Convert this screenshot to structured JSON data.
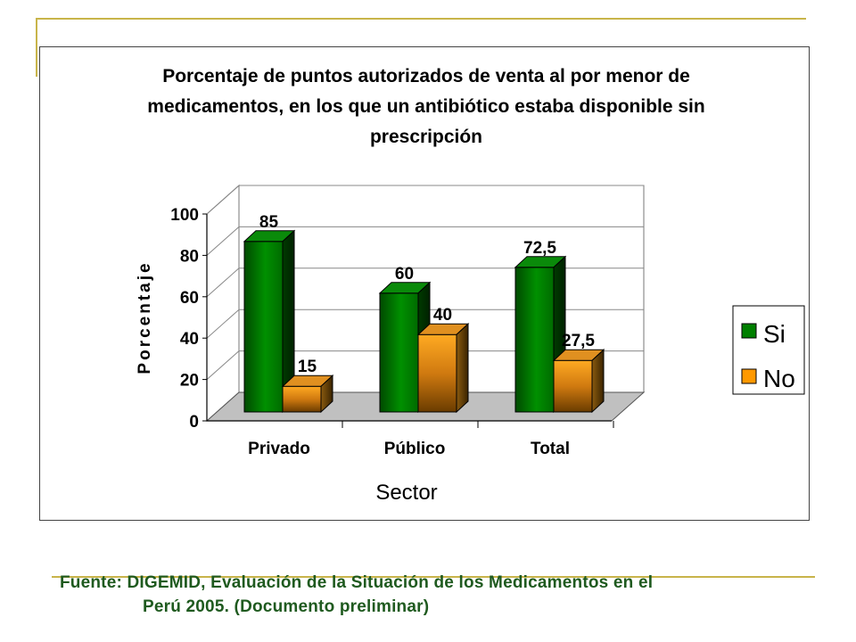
{
  "chart_data": {
    "type": "bar",
    "title": "Porcentaje de puntos autorizados de venta al por menor de medicamentos, en los que un antibiótico estaba disponible sin prescripción",
    "title_lines": [
      "Porcentaje de puntos autorizados de venta al por menor de",
      "medicamentos, en los que un antibiótico estaba disponible sin",
      "prescripción"
    ],
    "xlabel": "Sector",
    "ylabel": "Porcentaje",
    "categories": [
      "Privado",
      "Público",
      "Total"
    ],
    "series": [
      {
        "name": "Si",
        "values": [
          85,
          60,
          72.5
        ],
        "labels": [
          "85",
          "60",
          "72,5"
        ],
        "color": "#008000"
      },
      {
        "name": "No",
        "values": [
          15,
          40,
          27.5
        ],
        "labels": [
          "15",
          "40",
          "27,5"
        ],
        "color": "#ff9900"
      }
    ],
    "ylim": [
      0,
      100
    ],
    "yticks": [
      "0",
      "20",
      "40",
      "60",
      "80",
      "100"
    ],
    "grid": true,
    "legend_position": "right",
    "three_d": true
  },
  "source": {
    "line1": "Fuente: DIGEMID, Evaluación de la Situación de los Medicamentos en el",
    "line2": "Perú 2005. (Documento preliminar)"
  }
}
